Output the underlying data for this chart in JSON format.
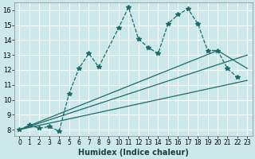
{
  "xlabel": "Humidex (Indice chaleur)",
  "bg_color": "#cce8e8",
  "grid_color": "#ffffff",
  "line_color": "#1a6b6b",
  "xlim": [
    -0.5,
    23.5
  ],
  "ylim": [
    7.6,
    16.5
  ],
  "xticks": [
    0,
    1,
    2,
    3,
    4,
    5,
    6,
    7,
    8,
    9,
    10,
    11,
    12,
    13,
    14,
    15,
    16,
    17,
    18,
    19,
    20,
    21,
    22,
    23
  ],
  "yticks": [
    8,
    9,
    10,
    11,
    12,
    13,
    14,
    15,
    16
  ],
  "dashed_series": {
    "x": [
      0,
      1,
      2,
      3,
      4,
      5,
      6,
      7,
      8,
      10,
      11,
      12,
      13,
      14,
      15,
      16,
      17,
      18,
      19,
      20,
      21,
      22
    ],
    "y": [
      8.0,
      8.3,
      8.1,
      8.2,
      7.9,
      10.4,
      12.1,
      13.1,
      12.2,
      14.8,
      16.2,
      14.1,
      13.5,
      13.1,
      15.1,
      15.7,
      16.1,
      15.1,
      13.3,
      13.3,
      12.1,
      11.5
    ]
  },
  "straight_lines": [
    {
      "x": [
        0,
        23
      ],
      "y": [
        8.0,
        11.3
      ]
    },
    {
      "x": [
        0,
        23
      ],
      "y": [
        8.0,
        13.0
      ]
    },
    {
      "x": [
        0,
        20,
        23
      ],
      "y": [
        8.0,
        13.3,
        12.1
      ]
    }
  ]
}
